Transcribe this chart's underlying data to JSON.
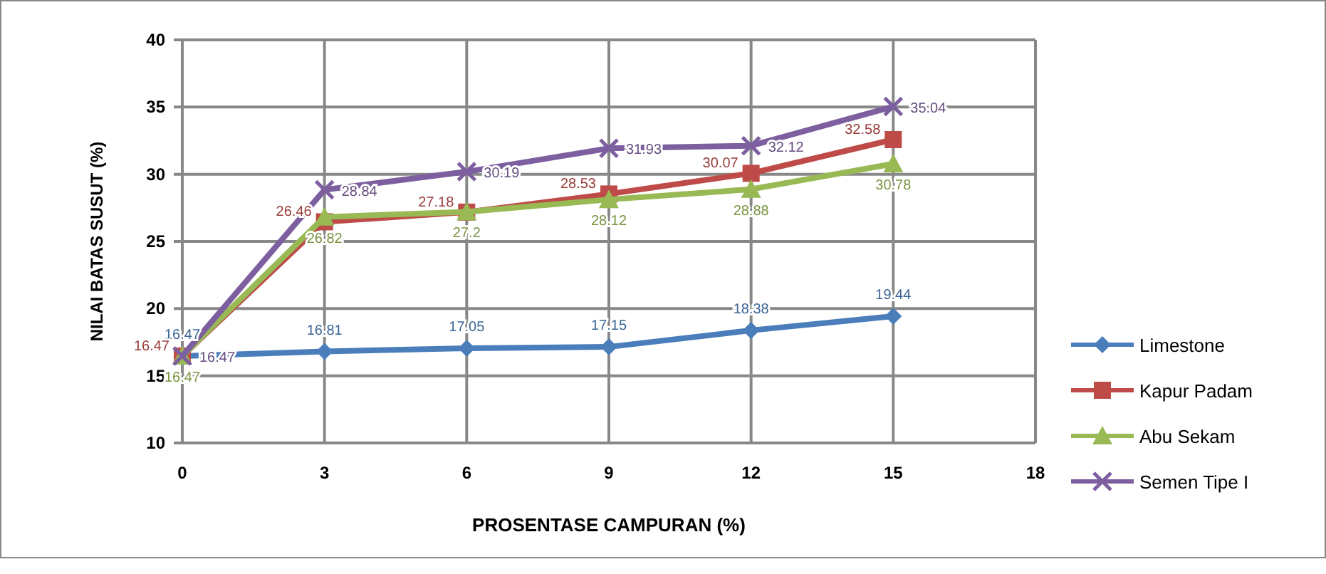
{
  "chart_data": {
    "type": "line",
    "xlabel": "PROSENTASE CAMPURAN (%)",
    "ylabel": "NILAI BATAS SUSUT (%)",
    "x": [
      0,
      3,
      6,
      9,
      12,
      15
    ],
    "xlim": [
      0,
      18
    ],
    "xticks": [
      0,
      3,
      6,
      9,
      12,
      15,
      18
    ],
    "ylim": [
      10,
      40
    ],
    "yticks": [
      10,
      15,
      20,
      25,
      30,
      35,
      40
    ],
    "grid": true,
    "legend": "right",
    "marker": "circle",
    "data_labels": true,
    "series": [
      {
        "name": "Limestone",
        "color": "#4a7ebb",
        "marker": "diamond",
        "values": [
          16.47,
          16.81,
          17.05,
          17.15,
          18.38,
          19.44
        ]
      },
      {
        "name": "Kapur Padam",
        "color": "#be4b48",
        "marker": "square",
        "values": [
          16.47,
          26.46,
          27.18,
          28.53,
          30.07,
          32.58
        ]
      },
      {
        "name": "Abu Sekam",
        "color": "#98b954",
        "marker": "triangle",
        "values": [
          16.47,
          26.82,
          27.2,
          28.12,
          28.88,
          30.78
        ]
      },
      {
        "name": "Semen Tipe I",
        "color": "#7d5fa0",
        "marker": "cross",
        "values": [
          16.47,
          28.84,
          30.19,
          31.93,
          32.12,
          35.04
        ]
      }
    ]
  }
}
